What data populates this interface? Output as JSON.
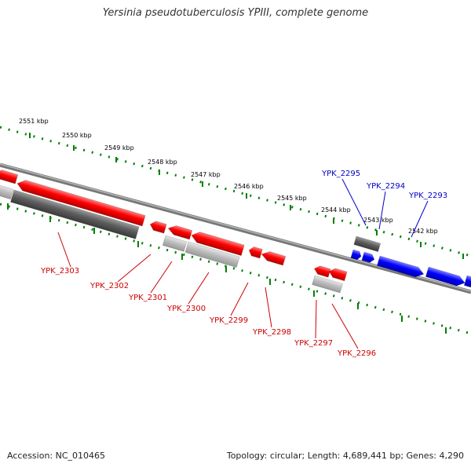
{
  "title": "Yersinia pseudotuberculosis YPIII, complete genome",
  "accession": "Accession: NC_010465",
  "topology_info": "Topology: circular; Length: 4,689,441 bp; Genes: 4,290",
  "colors": {
    "forward_gene": "#0000ff",
    "reverse_gene": "#ff0000",
    "orf_dark": "#666666",
    "orf_light": "#bbbbbb",
    "ruler": "#008000",
    "backbone": "#777777"
  },
  "kbp_labels": [
    "2551 kbp",
    "2550 kbp",
    "2549 kbp",
    "2548 kbp",
    "2547 kbp",
    "2546 kbp",
    "2545 kbp",
    "2544 kbp",
    "2543 kbp",
    "2542 kbp"
  ],
  "genes": [
    {
      "name": "YPK_2295",
      "strand": "forward"
    },
    {
      "name": "YPK_2294",
      "strand": "forward"
    },
    {
      "name": "YPK_2293",
      "strand": "forward"
    },
    {
      "name": "YPK_2303",
      "strand": "reverse"
    },
    {
      "name": "YPK_2302",
      "strand": "reverse"
    },
    {
      "name": "YPK_2301",
      "strand": "reverse"
    },
    {
      "name": "YPK_2300",
      "strand": "reverse"
    },
    {
      "name": "YPK_2299",
      "strand": "reverse"
    },
    {
      "name": "YPK_2298",
      "strand": "reverse"
    },
    {
      "name": "YPK_2297",
      "strand": "reverse"
    },
    {
      "name": "YPK_2296",
      "strand": "reverse"
    }
  ]
}
